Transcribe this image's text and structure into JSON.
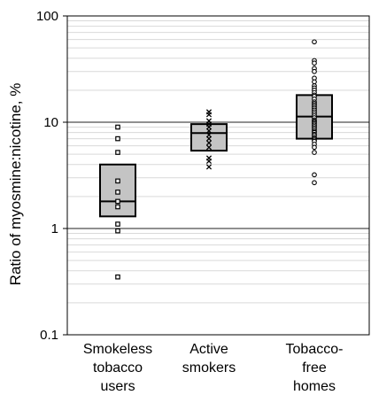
{
  "chart_data": {
    "type": "boxplot",
    "title": "",
    "xlabel": "",
    "ylabel": "Ratio of myosmine:nicotine, %",
    "yscale": "log",
    "ylim": [
      0.1,
      100
    ],
    "yticks": [
      {
        "value": 0.1,
        "label": "0.1"
      },
      {
        "value": 1,
        "label": "1"
      },
      {
        "value": 10,
        "label": "10"
      },
      {
        "value": 100,
        "label": "100"
      }
    ],
    "grid": {
      "major": true,
      "minor": true
    },
    "categories": [
      {
        "lines": [
          "Smokeless",
          "tobacco",
          "users"
        ]
      },
      {
        "lines": [
          "Active",
          "smokers"
        ]
      },
      {
        "lines": [
          "Tobacco-",
          "free",
          "homes"
        ]
      }
    ],
    "boxes": [
      {
        "q1": 1.3,
        "median": 1.8,
        "q3": 4.0,
        "marker": "square",
        "points": [
          9.0,
          7.0,
          5.2,
          2.8,
          2.2,
          1.8,
          1.6,
          1.1,
          0.95,
          0.35
        ]
      },
      {
        "q1": 5.4,
        "median": 7.9,
        "q3": 9.6,
        "marker": "x",
        "points": [
          12.5,
          11.8,
          10.3,
          9.6,
          9.0,
          8.3,
          7.6,
          7.0,
          6.4,
          5.8,
          4.6,
          4.3,
          3.8
        ]
      },
      {
        "q1": 7.0,
        "median": 11.3,
        "q3": 18.0,
        "marker": "circle",
        "points": [
          57,
          38,
          36,
          32,
          30,
          26,
          24,
          22,
          21,
          20,
          19,
          18,
          17.5,
          16.5,
          15.5,
          15,
          14.5,
          14,
          13.5,
          13,
          12.5,
          12,
          11.5,
          11,
          10.5,
          10.2,
          10,
          9.7,
          9.4,
          9.1,
          8.8,
          8.5,
          8.2,
          8.0,
          7.7,
          7.5,
          7.2,
          7.0,
          6.8,
          6.6,
          6.2,
          5.8,
          5.2,
          3.2,
          2.7
        ]
      }
    ]
  }
}
